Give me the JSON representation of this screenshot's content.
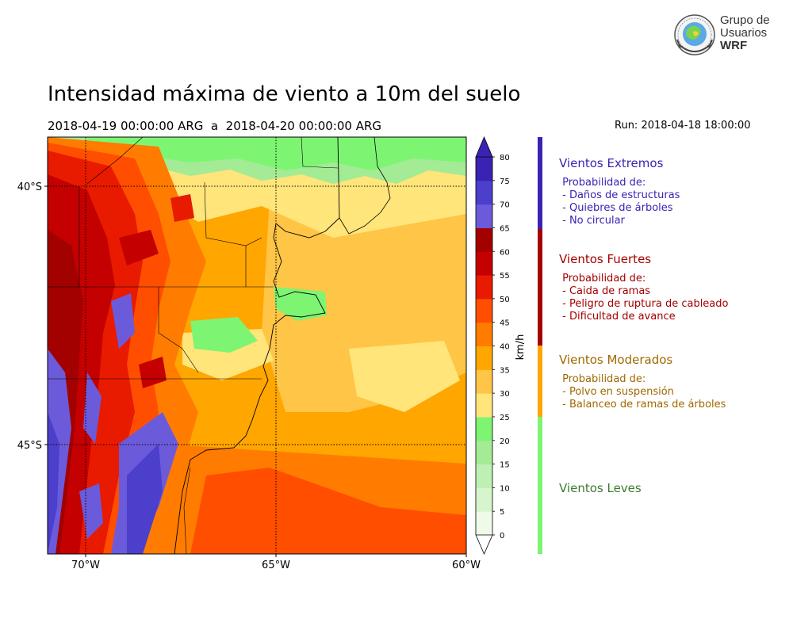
{
  "header": {
    "title": "Intensidad máxima de viento a 10m del suelo",
    "period": "2018-04-19 00:00:00 ARG  a  2018-04-20 00:00:00 ARG",
    "run": "Run: 2018-04-18 18:00:00"
  },
  "logo": {
    "line1": "Grupo de",
    "line2": "Usuarios",
    "line3": "WRF"
  },
  "map": {
    "lat_labels": [
      "40°S",
      "45°S"
    ],
    "lon_labels": [
      "70°W",
      "65°W",
      "60°W"
    ]
  },
  "colorbar": {
    "unit": "km/h",
    "ticks": [
      "0",
      "5",
      "10",
      "15",
      "20",
      "25",
      "30",
      "35",
      "40",
      "45",
      "50",
      "55",
      "60",
      "65",
      "70",
      "75",
      "80"
    ],
    "colors": [
      "#edfbe8",
      "#d7f5cd",
      "#bff0b3",
      "#a3eb95",
      "#7df572",
      "#ffe57a",
      "#ffc546",
      "#ffa600",
      "#ff7c00",
      "#ff4e00",
      "#e81a00",
      "#c40000",
      "#a30000",
      "#6b5bdb",
      "#4b3fcc",
      "#3a23b3"
    ]
  },
  "legend": {
    "extremos": {
      "title": "Vientos Extremos",
      "body": " Probabilidad de:\n - Daños de estructuras\n - Quiebres de árboles\n - No circular",
      "color": "#3a23b3"
    },
    "fuertes": {
      "title": "Vientos Fuertes",
      "body": " Probabilidad de:\n - Caida de ramas\n - Peligro de ruptura de cableado\n - Dificultad de avance",
      "color": "#a30000"
    },
    "moderados": {
      "title": "Vientos Moderados",
      "body": " Probabilidad de:\n - Polvo en suspensión\n - Balanceo de ramas de árboles",
      "color": "#a06800"
    },
    "leves": {
      "title": "Vientos Leves",
      "body": "",
      "color": "#3d7a32"
    }
  }
}
